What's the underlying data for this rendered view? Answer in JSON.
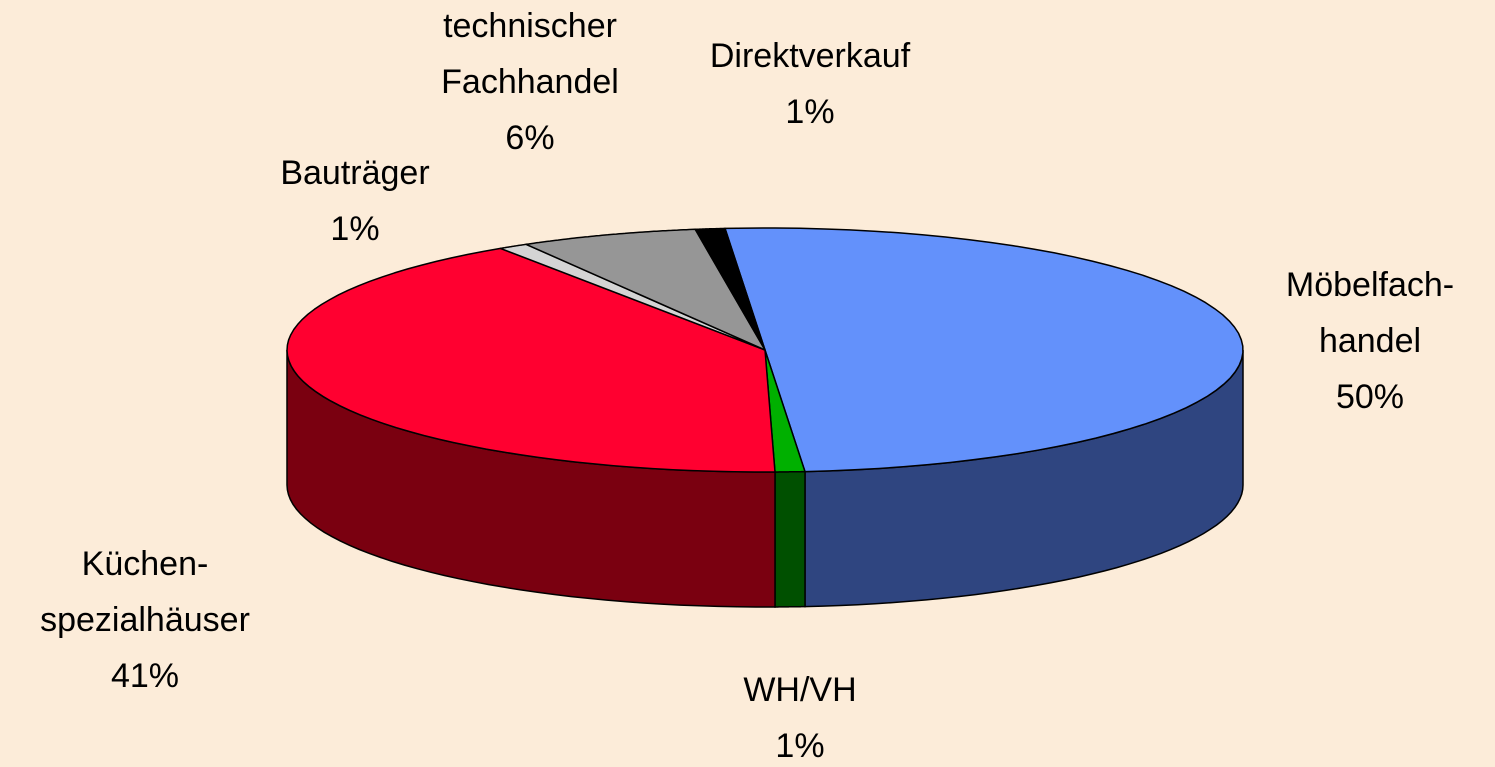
{
  "chart_data": {
    "type": "pie3d",
    "categories": [
      "Möbelfach-\nhandel",
      "WH/VH",
      "Küchen-\nspezialhäuser",
      "Bauträger",
      "technischer\nFachhandel",
      "Direktverkauf"
    ],
    "values": [
      50,
      1,
      41,
      1,
      6,
      1
    ],
    "value_labels": [
      "50%",
      "1%",
      "41%",
      "1%",
      "6%",
      "1%"
    ],
    "colors": [
      "#6391fb",
      "#00b000",
      "#ff0030",
      "#d4d4d4",
      "#969696",
      "#000000"
    ],
    "side_colors": [
      "#2f4580",
      "#005000",
      "#7a0010",
      "#7a7a7a",
      "#505050",
      "#000000"
    ]
  }
}
